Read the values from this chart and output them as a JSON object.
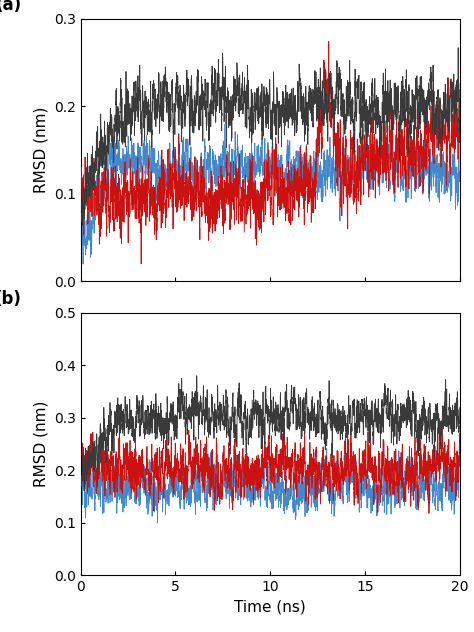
{
  "title": "",
  "xlabel": "Time (ns)",
  "ylabel": "RMSD (nm)",
  "xlim": [
    0,
    20
  ],
  "x_ticks": [
    0,
    5,
    10,
    15,
    20
  ],
  "panel_a": {
    "label": "(a)",
    "ylim": [
      0,
      0.3
    ],
    "y_ticks": [
      0,
      0.1,
      0.2,
      0.3
    ]
  },
  "panel_b": {
    "label": "(b)",
    "ylim": [
      0,
      0.5
    ],
    "y_ticks": [
      0,
      0.1,
      0.2,
      0.3,
      0.4,
      0.5
    ]
  },
  "colors": {
    "gray": "#3a3a3a",
    "red": "#cc1111",
    "blue": "#4488cc"
  },
  "n_points": 4000,
  "seed": 42,
  "linewidth": 0.6,
  "label_fontsize": 11,
  "tick_fontsize": 10,
  "panel_label_fontsize": 12
}
